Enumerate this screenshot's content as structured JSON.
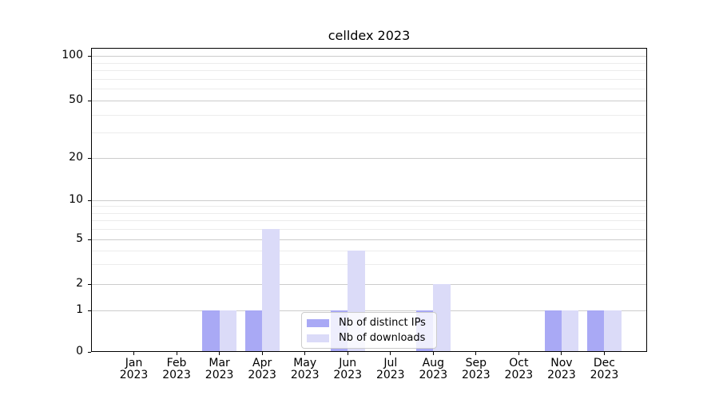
{
  "title": "celldex 2023",
  "chart_data": {
    "type": "bar",
    "title": "celldex 2023",
    "categories": [
      "Jan",
      "Feb",
      "Mar",
      "Apr",
      "May",
      "Jun",
      "Jul",
      "Aug",
      "Sep",
      "Oct",
      "Nov",
      "Dec"
    ],
    "year": "2023",
    "series": [
      {
        "name": "Nb of distinct IPs",
        "color": "#a9a9f5",
        "values": [
          0,
          0,
          1,
          1,
          0,
          1,
          0,
          1,
          0,
          0,
          1,
          1
        ]
      },
      {
        "name": "Nb of downloads",
        "color": "#dbdbf8",
        "values": [
          0,
          0,
          1,
          6,
          0,
          4,
          0,
          2,
          0,
          0,
          1,
          1
        ]
      }
    ],
    "xlabel": "",
    "ylabel": "",
    "yscale": "log-like, compressed near zero",
    "y_ticks": [
      0,
      1,
      2,
      5,
      10,
      20,
      50,
      100
    ],
    "y_minor_gridlines": [
      3,
      4,
      6,
      7,
      8,
      9,
      30,
      40,
      60,
      70,
      80,
      90
    ],
    "ylim": [
      0,
      115
    ],
    "grid": "horizontal",
    "legend_position": "lower center",
    "colors": {
      "bar_dark": "#a9a9f5",
      "bar_light": "#dbdbf8",
      "grid_major": "#cccccc",
      "grid_minor": "#ececec",
      "axis": "#000000",
      "legend_border": "#cccccc"
    }
  }
}
